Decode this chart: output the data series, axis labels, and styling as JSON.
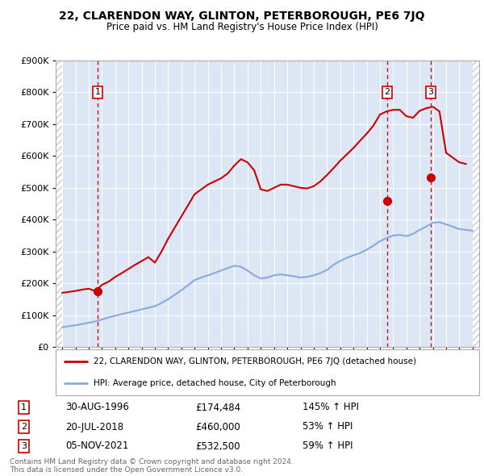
{
  "title": "22, CLARENDON WAY, GLINTON, PETERBOROUGH, PE6 7JQ",
  "subtitle": "Price paid vs. HM Land Registry's House Price Index (HPI)",
  "legend_line1": "22, CLARENDON WAY, GLINTON, PETERBOROUGH, PE6 7JQ (detached house)",
  "legend_line2": "HPI: Average price, detached house, City of Peterborough",
  "footnote1": "Contains HM Land Registry data © Crown copyright and database right 2024.",
  "footnote2": "This data is licensed under the Open Government Licence v3.0.",
  "transactions": [
    {
      "num": 1,
      "date": "30-AUG-1996",
      "price": 174484,
      "hpi_pct": "145% ↑ HPI",
      "x": 1996.66
    },
    {
      "num": 2,
      "date": "20-JUL-2018",
      "price": 460000,
      "hpi_pct": "53% ↑ HPI",
      "x": 2018.55
    },
    {
      "num": 3,
      "date": "05-NOV-2021",
      "price": 532500,
      "hpi_pct": "59% ↑ HPI",
      "x": 2021.84
    }
  ],
  "hpi_color": "#88aadd",
  "price_color": "#cc0000",
  "plot_bg_color": "#dce6f5",
  "hatch_color": "#c8c8d8",
  "ylim": [
    0,
    900000
  ],
  "xlim_start": 1993.5,
  "xlim_end": 2025.5,
  "hpi_x": [
    1994,
    1994.5,
    1995,
    1995.5,
    1996,
    1996.5,
    1997,
    1997.5,
    1998,
    1998.5,
    1999,
    1999.5,
    2000,
    2000.5,
    2001,
    2001.5,
    2002,
    2002.5,
    2003,
    2003.5,
    2004,
    2004.5,
    2005,
    2005.5,
    2006,
    2006.5,
    2007,
    2007.5,
    2008,
    2008.5,
    2009,
    2009.5,
    2010,
    2010.5,
    2011,
    2011.5,
    2012,
    2012.5,
    2013,
    2013.5,
    2014,
    2014.5,
    2015,
    2015.5,
    2016,
    2016.5,
    2017,
    2017.5,
    2018,
    2018.5,
    2019,
    2019.5,
    2020,
    2020.5,
    2021,
    2021.5,
    2022,
    2022.5,
    2023,
    2023.5,
    2024,
    2024.5,
    2025
  ],
  "hpi_y": [
    62000,
    65000,
    68000,
    72000,
    76000,
    80000,
    86000,
    93000,
    98000,
    103000,
    108000,
    113000,
    118000,
    123000,
    128000,
    138000,
    150000,
    164000,
    178000,
    194000,
    210000,
    218000,
    225000,
    232000,
    240000,
    248000,
    255000,
    252000,
    240000,
    225000,
    215000,
    218000,
    225000,
    228000,
    225000,
    222000,
    218000,
    220000,
    225000,
    232000,
    242000,
    258000,
    270000,
    280000,
    288000,
    295000,
    305000,
    318000,
    332000,
    342000,
    350000,
    352000,
    348000,
    355000,
    368000,
    378000,
    390000,
    392000,
    385000,
    378000,
    370000,
    368000,
    365000
  ],
  "price_x": [
    1994,
    1994.5,
    1995,
    1995.5,
    1996,
    1996.5,
    1997,
    1997.5,
    1998,
    1998.5,
    1999,
    1999.5,
    2000,
    2000.5,
    2001,
    2001.5,
    2002,
    2002.5,
    2003,
    2003.5,
    2004,
    2004.5,
    2005,
    2005.5,
    2006,
    2006.5,
    2007,
    2007.5,
    2008,
    2008.5,
    2009,
    2009.5,
    2010,
    2010.5,
    2011,
    2011.5,
    2012,
    2012.5,
    2013,
    2013.5,
    2014,
    2014.5,
    2015,
    2015.5,
    2016,
    2016.5,
    2017,
    2017.5,
    2018,
    2018.5,
    2019,
    2019.5,
    2020,
    2020.5,
    2021,
    2021.5,
    2022,
    2022.5,
    2023,
    2023.5,
    2024,
    2024.5
  ],
  "price_y": [
    170000,
    173000,
    176000,
    180000,
    183000,
    175000,
    195000,
    205000,
    220000,
    232000,
    245000,
    258000,
    270000,
    282000,
    265000,
    300000,
    340000,
    375000,
    410000,
    445000,
    480000,
    495000,
    510000,
    520000,
    530000,
    545000,
    570000,
    590000,
    580000,
    555000,
    495000,
    490000,
    500000,
    510000,
    510000,
    505000,
    500000,
    498000,
    505000,
    520000,
    540000,
    562000,
    585000,
    605000,
    625000,
    648000,
    670000,
    695000,
    730000,
    740000,
    745000,
    745000,
    725000,
    720000,
    742000,
    750000,
    755000,
    740000,
    610000,
    595000,
    580000,
    575000
  ]
}
